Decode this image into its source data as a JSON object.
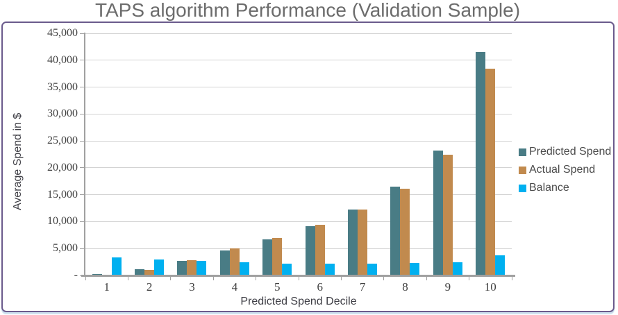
{
  "page": {
    "title": "TAPS algorithm Performance (Validation Sample)"
  },
  "chart_data": {
    "type": "bar",
    "title": "TAPS algorithm Performance (Validation Sample)",
    "xlabel": "Predicted Spend Decile",
    "ylabel": "Average Spend in $",
    "categories": [
      "1",
      "2",
      "3",
      "4",
      "5",
      "6",
      "7",
      "8",
      "9",
      "10"
    ],
    "series": [
      {
        "name": "Predicted Spend",
        "color": "#497c85",
        "values": [
          300,
          1200,
          2750,
          4700,
          6650,
          9100,
          12250,
          16500,
          23200,
          41500
        ]
      },
      {
        "name": "Actual Spend",
        "color": "#c18a4e",
        "values": [
          120,
          1000,
          2850,
          5000,
          7000,
          9400,
          12250,
          16150,
          22450,
          38400
        ]
      },
      {
        "name": "Balance",
        "color": "#00b0f0",
        "values": [
          3300,
          2950,
          2650,
          2450,
          2200,
          2200,
          2200,
          2350,
          2500,
          3800
        ]
      }
    ],
    "ylim": [
      0,
      45000
    ],
    "yticks": [
      {
        "label": "45,000",
        "value": 45000
      },
      {
        "label": "40,000",
        "value": 40000
      },
      {
        "label": "35,000",
        "value": 35000
      },
      {
        "label": "30,000",
        "value": 30000
      },
      {
        "label": "25,000",
        "value": 25000
      },
      {
        "label": "20,000",
        "value": 20000
      },
      {
        "label": "15,000",
        "value": 15000
      },
      {
        "label": "10,000",
        "value": 10000
      },
      {
        "label": "5,000",
        "value": 5000
      },
      {
        "label": "-",
        "value": 0
      }
    ],
    "grid": true,
    "legend_position": "right"
  },
  "colors": {
    "border": "#6a5a8c",
    "gridline": "#d2d2d2",
    "axis": "#a0a0a0",
    "title_text": "#6c6c6c",
    "tick_text": "#404040"
  }
}
